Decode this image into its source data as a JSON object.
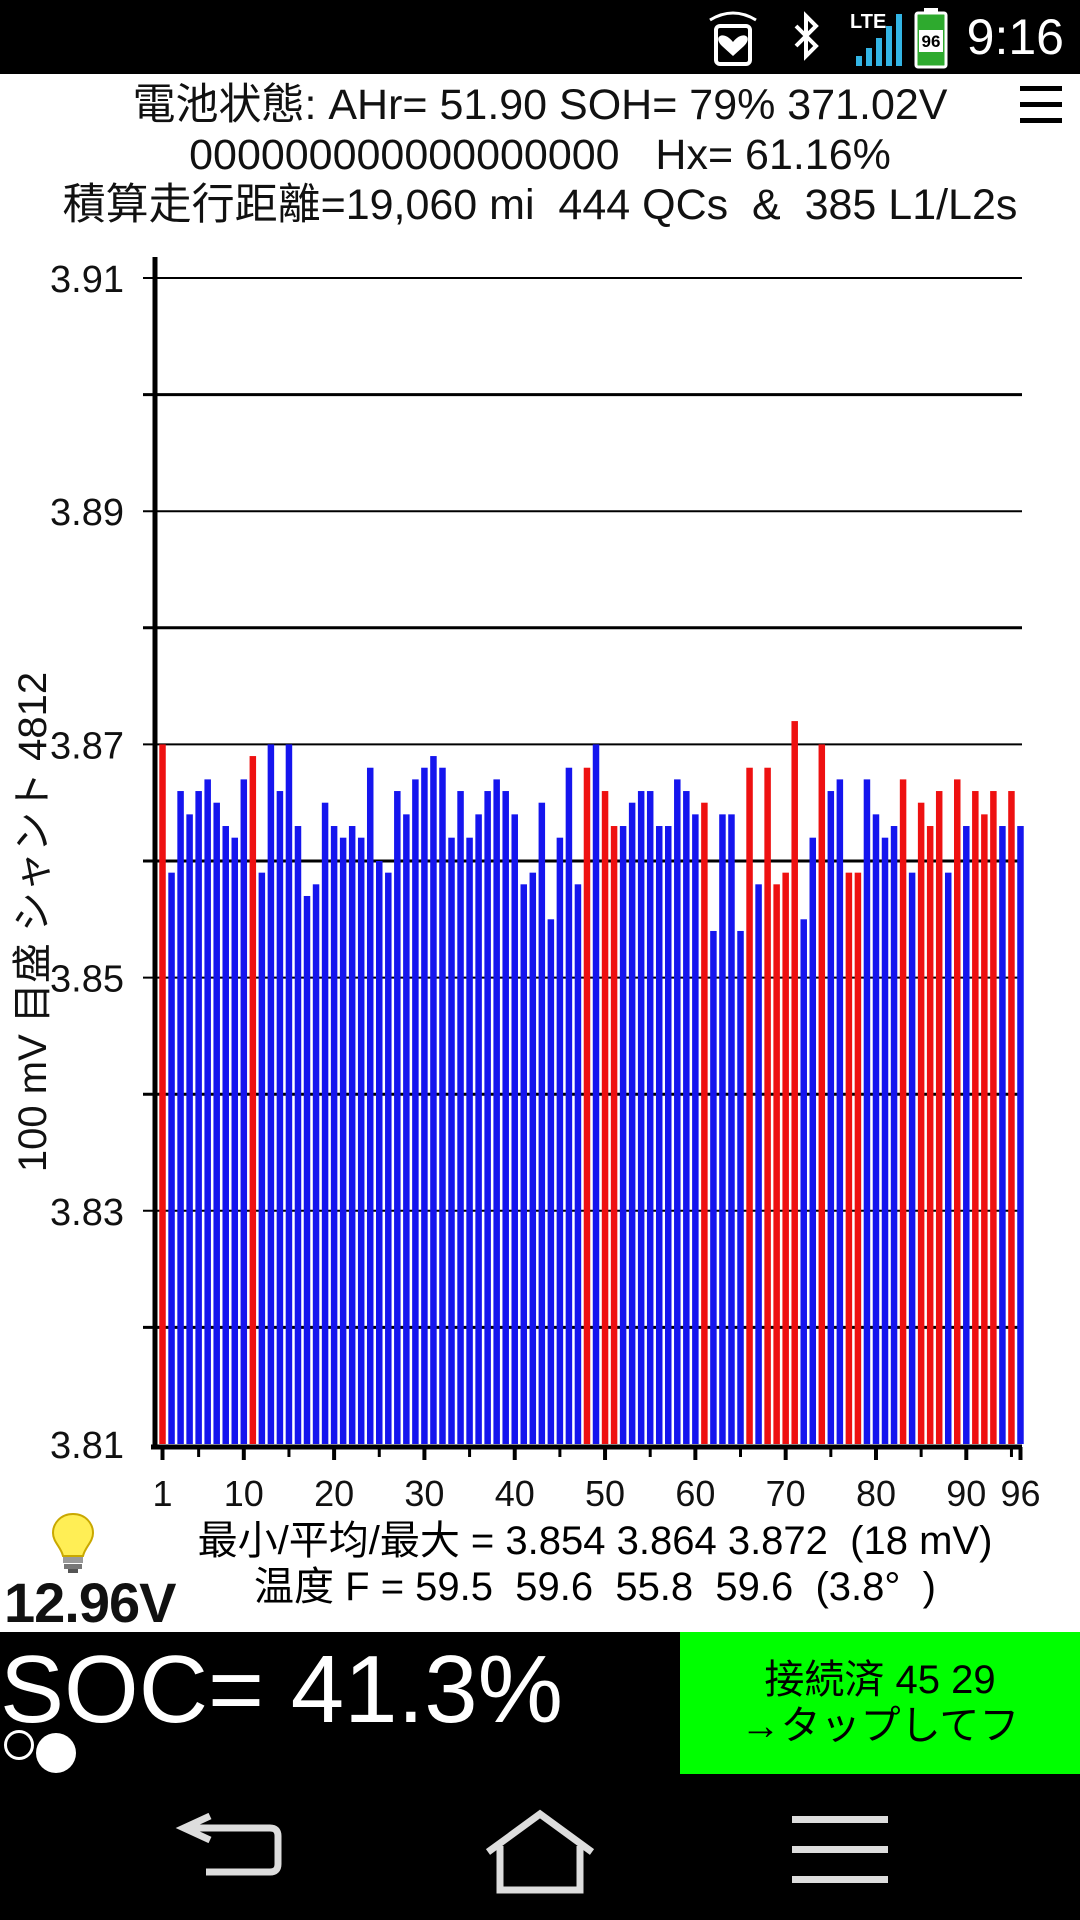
{
  "status_bar": {
    "time": "9:16",
    "battery_level": "96",
    "network": "LTE",
    "icons": [
      "nfc-heart-icon",
      "bluetooth-icon",
      "lte-signal-icon",
      "battery-icon"
    ]
  },
  "header": {
    "line1": "電池状態: AHr= 51.90 SOH= 79% 371.02V",
    "line2": "000000000000000000   Hx= 61.16%",
    "line3": "積算走行距離=19,060 mi  444 QCs  &  385 L1/L2s"
  },
  "chart_data": {
    "type": "bar",
    "ylabel": "100 mV 目盛  シャント 4812",
    "ylim": [
      3.81,
      3.912
    ],
    "ytick_labels": [
      "3.91",
      "3.89",
      "3.87",
      "3.85",
      "3.83",
      "3.81"
    ],
    "xtick_labels": [
      "1",
      "10",
      "20",
      "30",
      "40",
      "50",
      "60",
      "70",
      "80",
      "90",
      "96"
    ],
    "grid": true,
    "colors": {
      "normal": "#1515ee",
      "shunted": "#ee1111"
    },
    "values": [
      3.87,
      3.859,
      3.866,
      3.864,
      3.866,
      3.867,
      3.865,
      3.863,
      3.862,
      3.867,
      3.869,
      3.859,
      3.87,
      3.866,
      3.87,
      3.863,
      3.857,
      3.858,
      3.865,
      3.863,
      3.862,
      3.863,
      3.862,
      3.868,
      3.86,
      3.859,
      3.866,
      3.864,
      3.867,
      3.868,
      3.869,
      3.868,
      3.862,
      3.866,
      3.862,
      3.864,
      3.866,
      3.867,
      3.866,
      3.864,
      3.858,
      3.859,
      3.865,
      3.855,
      3.862,
      3.868,
      3.858,
      3.868,
      3.87,
      3.866,
      3.863,
      3.863,
      3.865,
      3.866,
      3.866,
      3.863,
      3.863,
      3.867,
      3.866,
      3.864,
      3.865,
      3.854,
      3.864,
      3.864,
      3.854,
      3.868,
      3.858,
      3.868,
      3.858,
      3.859,
      3.872,
      3.855,
      3.862,
      3.87,
      3.866,
      3.867,
      3.859,
      3.859,
      3.867,
      3.864,
      3.862,
      3.863,
      3.867,
      3.859,
      3.865,
      3.863,
      3.866,
      3.859,
      3.867,
      3.863,
      3.866,
      3.864,
      3.866,
      3.863,
      3.866,
      3.863
    ],
    "shunted": [
      1,
      11,
      48,
      50,
      51,
      61,
      66,
      68,
      69,
      70,
      71,
      74,
      77,
      78,
      83,
      85,
      86,
      87,
      89,
      91,
      92,
      93,
      95
    ]
  },
  "stats": {
    "minavgmax": "最小/平均/最大 = 3.854 3.864 3.872  (18 mV)",
    "temperature": "温度 F = 59.5  59.6  55.8  59.6  (3.8°  )"
  },
  "aux_voltage": "12.96V",
  "soc": "SOC= 41.3%",
  "connect": {
    "line1": "接続済 45 29",
    "line2": "→タップしてフ"
  }
}
